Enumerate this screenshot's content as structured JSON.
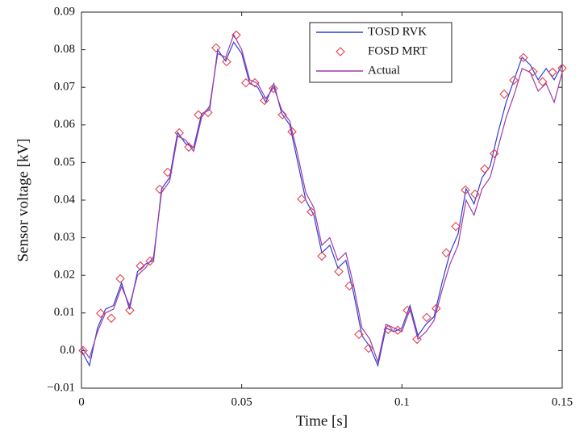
{
  "chart_data": {
    "type": "line",
    "xlabel": "Time  [s]",
    "ylabel": "Sensor voltage  [kV]",
    "xlim": [
      0,
      0.15
    ],
    "ylim": [
      -0.01,
      0.09
    ],
    "xticks": [
      0,
      0.05,
      0.1,
      0.15
    ],
    "yticks": [
      {
        "value": -0.01,
        "label": "−0.01"
      },
      {
        "value": 0,
        "label": "0.0"
      },
      0.01,
      0.02,
      0.03,
      0.04,
      0.05,
      0.06,
      0.07,
      0.08,
      0.09
    ],
    "legend": "upper right",
    "series": [
      {
        "name": "TOSD RVK",
        "color": "#2b3fd8",
        "marker": "none",
        "x": [
          0,
          0.0025,
          0.005,
          0.0075,
          0.01,
          0.0125,
          0.015,
          0.0175,
          0.02,
          0.0225,
          0.025,
          0.0275,
          0.03,
          0.0325,
          0.035,
          0.0375,
          0.04,
          0.0425,
          0.045,
          0.0475,
          0.05,
          0.0525,
          0.055,
          0.0575,
          0.06,
          0.0625,
          0.065,
          0.0675,
          0.07,
          0.0725,
          0.075,
          0.0775,
          0.08,
          0.0825,
          0.085,
          0.0875,
          0.09,
          0.0925,
          0.095,
          0.0975,
          0.1,
          0.1025,
          0.105,
          0.1075,
          0.11,
          0.1125,
          0.115,
          0.1175,
          0.12,
          0.1225,
          0.125,
          0.1275,
          0.13,
          0.1325,
          0.135,
          0.1375,
          0.14,
          0.1425,
          0.145,
          0.1475,
          0.15
        ],
        "values": [
          0.0,
          -0.004,
          0.006,
          0.011,
          0.012,
          0.018,
          0.011,
          0.021,
          0.023,
          0.024,
          0.043,
          0.046,
          0.058,
          0.055,
          0.054,
          0.063,
          0.064,
          0.08,
          0.077,
          0.082,
          0.079,
          0.071,
          0.07,
          0.066,
          0.071,
          0.063,
          0.06,
          0.05,
          0.04,
          0.036,
          0.026,
          0.028,
          0.022,
          0.024,
          0.015,
          0.004,
          0.001,
          -0.004,
          0.006,
          0.005,
          0.006,
          0.012,
          0.004,
          0.007,
          0.009,
          0.018,
          0.026,
          0.031,
          0.043,
          0.039,
          0.046,
          0.049,
          0.058,
          0.066,
          0.072,
          0.078,
          0.076,
          0.072,
          0.075,
          0.072,
          0.076
        ]
      },
      {
        "name": "FOSD MRT",
        "color": "#e8404a",
        "marker": "diamond",
        "x": [
          0.0005,
          0.006,
          0.0093,
          0.0121,
          0.0151,
          0.0184,
          0.0214,
          0.0244,
          0.0269,
          0.0305,
          0.0335,
          0.0365,
          0.0395,
          0.042,
          0.0453,
          0.0483,
          0.0513,
          0.0541,
          0.0571,
          0.0599,
          0.0627,
          0.0657,
          0.0687,
          0.0717,
          0.075,
          0.0803,
          0.0836,
          0.0866,
          0.0896,
          0.0957,
          0.0987,
          0.1017,
          0.1047,
          0.1077,
          0.1107,
          0.1138,
          0.1168,
          0.1198,
          0.1228,
          0.1258,
          0.1288,
          0.1319,
          0.1349,
          0.1379,
          0.1409,
          0.1439,
          0.147,
          0.15
        ],
        "values": [
          0.0,
          0.0099,
          0.0086,
          0.0191,
          0.0107,
          0.0225,
          0.0238,
          0.0429,
          0.0474,
          0.0579,
          0.0541,
          0.0627,
          0.0633,
          0.0805,
          0.0768,
          0.0839,
          0.0712,
          0.0712,
          0.0665,
          0.0697,
          0.0627,
          0.0582,
          0.0403,
          0.0369,
          0.0251,
          0.021,
          0.0172,
          0.0043,
          0.0006,
          0.0056,
          0.0054,
          0.0107,
          0.003,
          0.0088,
          0.0112,
          0.026,
          0.033,
          0.0427,
          0.0416,
          0.0483,
          0.0524,
          0.0682,
          0.0719,
          0.0779,
          0.0742,
          0.0715,
          0.074,
          0.0751
        ]
      },
      {
        "name": "Actual",
        "color": "#a03aa6",
        "marker": "none",
        "x": [
          0,
          0.0025,
          0.005,
          0.0075,
          0.01,
          0.0125,
          0.015,
          0.0175,
          0.02,
          0.0225,
          0.025,
          0.0275,
          0.03,
          0.0325,
          0.035,
          0.0375,
          0.04,
          0.0425,
          0.045,
          0.0475,
          0.05,
          0.0525,
          0.055,
          0.0575,
          0.06,
          0.0625,
          0.065,
          0.0675,
          0.07,
          0.0725,
          0.075,
          0.0775,
          0.08,
          0.0825,
          0.085,
          0.0875,
          0.09,
          0.0925,
          0.095,
          0.0975,
          0.1,
          0.1025,
          0.105,
          0.1075,
          0.11,
          0.1125,
          0.115,
          0.1175,
          0.12,
          0.1225,
          0.125,
          0.1275,
          0.13,
          0.1325,
          0.135,
          0.1375,
          0.14,
          0.1425,
          0.145,
          0.1475,
          0.15
        ],
        "values": [
          0.001,
          -0.002,
          0.005,
          0.01,
          0.011,
          0.017,
          0.012,
          0.02,
          0.022,
          0.025,
          0.042,
          0.045,
          0.057,
          0.056,
          0.053,
          0.062,
          0.065,
          0.079,
          0.078,
          0.084,
          0.08,
          0.072,
          0.071,
          0.067,
          0.07,
          0.064,
          0.061,
          0.052,
          0.042,
          0.038,
          0.028,
          0.03,
          0.024,
          0.026,
          0.017,
          0.006,
          0.003,
          -0.003,
          0.007,
          0.006,
          0.005,
          0.011,
          0.003,
          0.005,
          0.008,
          0.016,
          0.023,
          0.028,
          0.04,
          0.036,
          0.043,
          0.046,
          0.054,
          0.062,
          0.068,
          0.075,
          0.074,
          0.069,
          0.071,
          0.066,
          0.074
        ]
      }
    ]
  }
}
